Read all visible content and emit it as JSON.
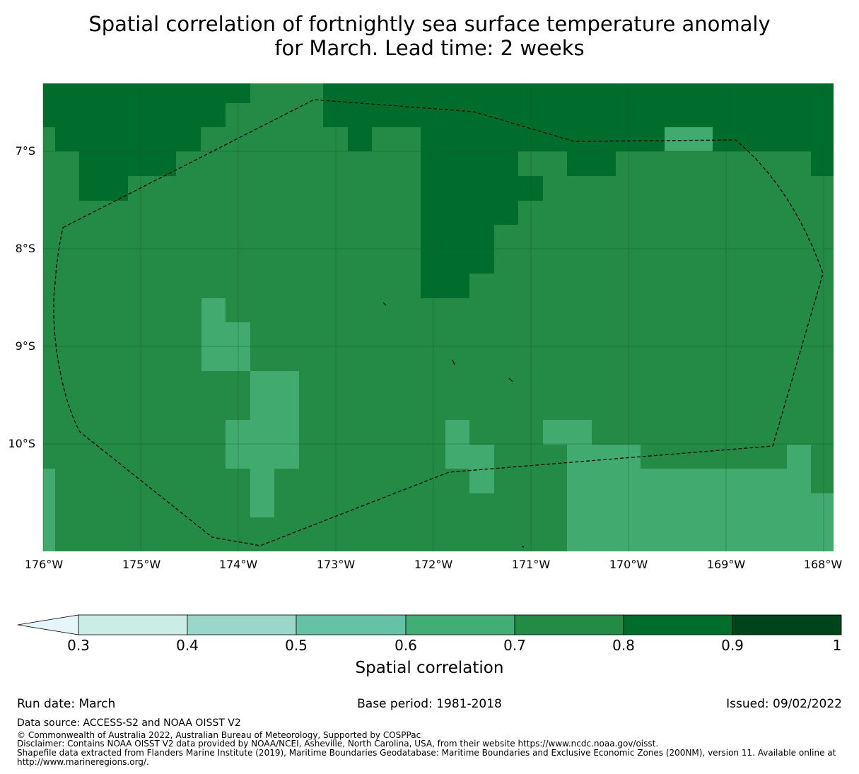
{
  "title": {
    "line1": "Spatial correlation of fortnightly sea surface temperature anomaly",
    "line2": "for March. Lead time: 2 weeks"
  },
  "map": {
    "lat_labels": [
      "7°S",
      "8°S",
      "9°S",
      "10°S"
    ],
    "lon_labels": [
      "176°W",
      "175°W",
      "174°W",
      "173°W",
      "172°W",
      "171°W",
      "170°W",
      "169°W",
      "168°W"
    ],
    "colors": {
      "c06_07": "#41ab6f",
      "c07_08": "#238b45",
      "c08_09": "#006d2c",
      "boundary": "#000000"
    }
  },
  "colorbar": {
    "label": "Spatial correlation",
    "ticks": [
      "0.3",
      "0.4",
      "0.5",
      "0.6",
      "0.7",
      "0.8",
      "0.9",
      "1"
    ],
    "bin_colors": [
      "#e5f5f9",
      "#ccece6",
      "#99d8c9",
      "#66c2a4",
      "#41ae76",
      "#238b45",
      "#006d2c",
      "#00441b"
    ]
  },
  "footer": {
    "run_date": "Run date: March",
    "base_period": "Base period: 1981-2018",
    "issued": "Issued: 09/02/2022",
    "data_source": "Data source: ACCESS-S2 and NOAA OISST V2",
    "copyright": "© Commonwealth of Australia 2022, Australian Bureau of Meteorology, Supported by COSPPac",
    "disclaimer": "Disclaimer: Contains NOAA OISST V2 data provided by NOAA/NCEI, Asheville, North Carolina, USA, from their website https://www.ncdc.noaa.gov/oisst.",
    "shapefile": "Shapefile data extracted from Flanders Marine Institute (2019), Maritime Boundaries Geodatabase: Maritime Boundaries and Exclusive Economic Zones (200NM), version 11. Available online at http://www.marineregions.org/."
  }
}
